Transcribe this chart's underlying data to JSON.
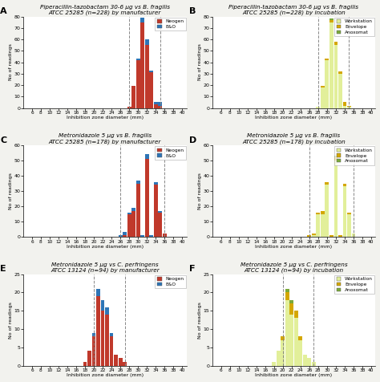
{
  "panels": [
    {
      "label": "A",
      "title_parts": [
        "Piperacillin-tazobactam 30-6 μg vs ",
        "B. fragilis",
        "\nATCC 25285 (n=228) by manufacturer"
      ],
      "title": "Piperacillin-tazobactam 30-6 μg vs B. fragilis\nATCC 25285 (n=228) by manufacturer",
      "type": "manufacturer",
      "ylim": [
        0,
        80
      ],
      "yticks": [
        0,
        10,
        20,
        30,
        40,
        50,
        60,
        70,
        80
      ],
      "vlines": [
        28,
        35
      ],
      "bars": {
        "Neogen": {
          "28": 1,
          "29": 19,
          "30": 42,
          "31": 75,
          "32": 55,
          "33": 31,
          "34": 3,
          "35": 2
        },
        "E&O": {
          "28": 0,
          "29": 0,
          "30": 1,
          "31": 4,
          "32": 5,
          "33": 2,
          "34": 2,
          "35": 3
        }
      },
      "colors": {
        "Neogen": "#c0392b",
        "E&O": "#2e75b6"
      },
      "legend_labels": [
        "Neogen",
        "E&O"
      ]
    },
    {
      "label": "B",
      "title": "Piperacillin-tazobactam 30-6 μg vs B. fragilis\nATCC 25285 (n=228) by incubation",
      "type": "incubation",
      "ylim": [
        0,
        80
      ],
      "yticks": [
        0,
        10,
        20,
        30,
        40,
        50,
        60,
        70,
        80
      ],
      "vlines": [
        28,
        35
      ],
      "bars": {
        "Workstation": {
          "28": 1,
          "29": 18,
          "30": 42,
          "31": 75,
          "32": 55,
          "33": 30,
          "34": 2,
          "35": 1
        },
        "Envelope": {
          "28": 0,
          "29": 1,
          "30": 1,
          "31": 2,
          "32": 3,
          "33": 2,
          "34": 3,
          "35": 1
        },
        "Anoxomat": {
          "28": 0,
          "29": 0,
          "30": 0,
          "31": 1,
          "32": 0,
          "33": 0,
          "34": 0,
          "35": 0
        }
      },
      "colors": {
        "Workstation": "#e2ef9a",
        "Envelope": "#d4a700",
        "Anoxomat": "#7aaa3b"
      },
      "legend_labels": [
        "Workstation",
        "Envelope",
        "Anoxomat"
      ]
    },
    {
      "label": "C",
      "title": "Metronidazole 5 μg vs B. fragilis\nATCC 25285 (n=178) by manufacturer",
      "type": "manufacturer",
      "ylim": [
        0,
        60
      ],
      "yticks": [
        0,
        10,
        20,
        30,
        40,
        50,
        60
      ],
      "vlines": [
        26,
        36
      ],
      "bars": {
        "Neogen": {
          "25": 0,
          "26": 0,
          "27": 1,
          "28": 15,
          "29": 17,
          "30": 35,
          "31": 0,
          "32": 51,
          "33": 0,
          "34": 34,
          "35": 16,
          "36": 2
        },
        "E&O": {
          "25": 0,
          "26": 1,
          "27": 2,
          "28": 1,
          "29": 2,
          "30": 2,
          "31": 1,
          "32": 3,
          "33": 1,
          "34": 2,
          "35": 1,
          "36": 0
        }
      },
      "colors": {
        "Neogen": "#c0392b",
        "E&O": "#2e75b6"
      },
      "legend_labels": [
        "Neogen",
        "E&O"
      ]
    },
    {
      "label": "D",
      "title": "Metronidazole 5 μg vs B. fragilis\nATCC 25285 (n=178) by incubation",
      "type": "incubation",
      "ylim": [
        0,
        60
      ],
      "yticks": [
        0,
        10,
        20,
        30,
        40,
        50,
        60
      ],
      "vlines": [
        26,
        36
      ],
      "bars": {
        "Workstation": {
          "25": 0,
          "26": 0,
          "27": 1,
          "28": 15,
          "29": 15,
          "30": 34,
          "31": 0,
          "32": 50,
          "33": 0,
          "34": 33,
          "35": 15,
          "36": 2
        },
        "Envelope": {
          "25": 0,
          "26": 1,
          "27": 1,
          "28": 1,
          "29": 2,
          "30": 2,
          "31": 1,
          "32": 2,
          "33": 1,
          "34": 2,
          "35": 1,
          "36": 0
        },
        "Anoxomat": {
          "25": 0,
          "26": 0,
          "27": 0,
          "28": 0,
          "29": 0,
          "30": 0,
          "31": 0,
          "32": 1,
          "33": 0,
          "34": 0,
          "35": 0,
          "36": 0
        }
      },
      "colors": {
        "Workstation": "#e2ef9a",
        "Envelope": "#d4a700",
        "Anoxomat": "#7aaa3b"
      },
      "legend_labels": [
        "Workstation",
        "Envelope",
        "Anoxomat"
      ]
    },
    {
      "label": "E",
      "title": "Metronidazole 5 μg vs C. perfringens\nATCC 13124 (n=94) by manufacturer",
      "type": "manufacturer",
      "ylim": [
        0,
        25
      ],
      "yticks": [
        0,
        5,
        10,
        15,
        20,
        25
      ],
      "vlines": [
        20,
        27
      ],
      "bars": {
        "Neogen": {
          "18": 1,
          "19": 4,
          "20": 8,
          "21": 19,
          "22": 15,
          "23": 14,
          "24": 8,
          "25": 3,
          "26": 2,
          "27": 1
        },
        "E&O": {
          "18": 0,
          "19": 0,
          "20": 1,
          "21": 2,
          "22": 3,
          "23": 2,
          "24": 1,
          "25": 0,
          "26": 0,
          "27": 0
        }
      },
      "colors": {
        "Neogen": "#c0392b",
        "E&O": "#2e75b6"
      },
      "legend_labels": [
        "Neogen",
        "E&O"
      ]
    },
    {
      "label": "F",
      "title": "Metronidazole 5 μg vs C. perfringens\nATCC 13124 (n=94) by incubation",
      "type": "incubation",
      "ylim": [
        0,
        25
      ],
      "yticks": [
        0,
        5,
        10,
        15,
        20,
        25
      ],
      "vlines": [
        20,
        27
      ],
      "bars": {
        "Workstation": {
          "18": 1,
          "19": 4,
          "20": 7,
          "21": 18,
          "22": 14,
          "23": 13,
          "24": 7,
          "25": 3,
          "26": 2,
          "27": 1
        },
        "Envelope": {
          "18": 0,
          "19": 0,
          "20": 1,
          "21": 2,
          "22": 3,
          "23": 2,
          "24": 1,
          "25": 0,
          "26": 0,
          "27": 0
        },
        "Anoxomat": {
          "18": 0,
          "19": 0,
          "20": 0,
          "21": 1,
          "22": 1,
          "23": 0,
          "24": 0,
          "25": 0,
          "26": 0,
          "27": 0
        }
      },
      "colors": {
        "Workstation": "#e2ef9a",
        "Envelope": "#d4a700",
        "Anoxomat": "#7aaa3b"
      },
      "legend_labels": [
        "Workstation",
        "Envelope",
        "Anoxomat"
      ]
    }
  ],
  "xtick_labels": [
    "6",
    "8",
    "10",
    "12",
    "14",
    "16",
    "18",
    "20",
    "22",
    "24",
    "26",
    "28",
    "30",
    "32",
    "34",
    "36",
    "38",
    "40"
  ],
  "xtick_values": [
    6,
    8,
    10,
    12,
    14,
    16,
    18,
    20,
    22,
    24,
    26,
    28,
    30,
    32,
    34,
    36,
    38,
    40
  ],
  "xlabel": "Inhibition zone diameter (mm)",
  "ylabel": "No of readings",
  "bg_color": "#f2f2ee",
  "plot_bg": "#ffffff"
}
